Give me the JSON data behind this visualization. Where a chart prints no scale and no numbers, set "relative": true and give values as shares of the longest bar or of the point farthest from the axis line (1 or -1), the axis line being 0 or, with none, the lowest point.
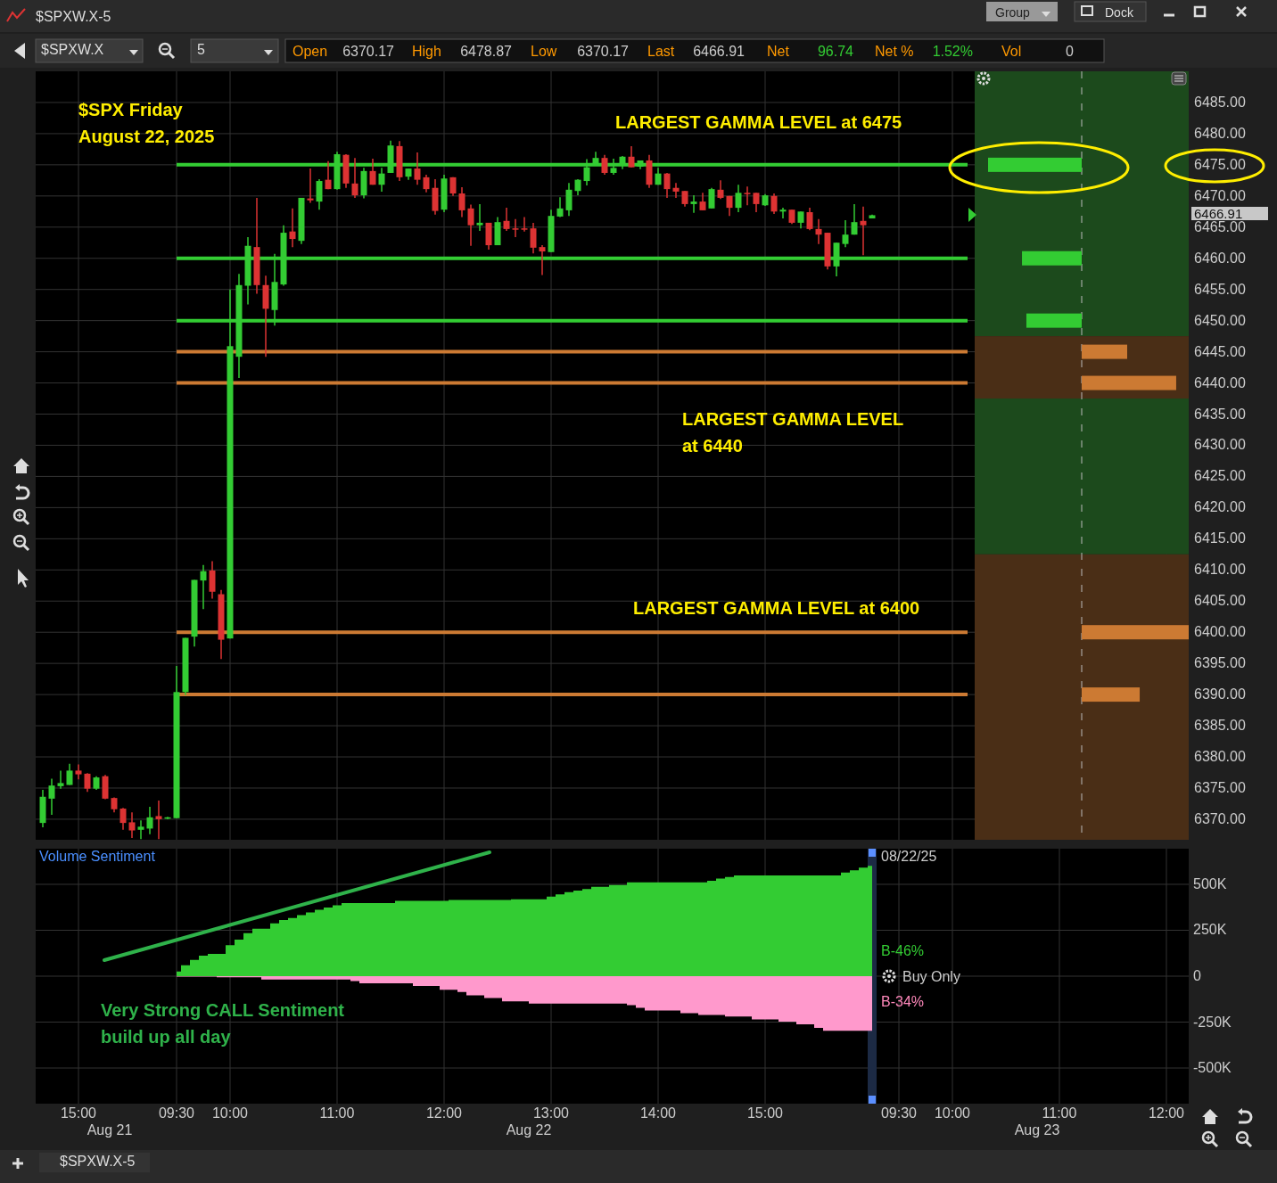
{
  "chart_data": [
    {
      "type": "candlestick",
      "title": "$SPX Friday",
      "subtitle": "August 22, 2025",
      "tick_labels": "y",
      "grid": true,
      "categories": [
        null,
        null,
        null,
        null,
        "15:00",
        null,
        null,
        null,
        null,
        null,
        null,
        null,
        null,
        null,
        null,
        "09:30",
        null,
        null,
        null,
        null,
        null,
        "10:00",
        null,
        null,
        null,
        null,
        null,
        null,
        null,
        null,
        null,
        null,
        null,
        "11:00",
        null,
        null,
        null,
        null,
        null,
        null,
        null,
        null,
        null,
        null,
        null,
        "12:00",
        null,
        null,
        null,
        null,
        null,
        null,
        null,
        null,
        null,
        null,
        null,
        "13:00",
        null,
        null,
        null,
        null,
        null,
        null,
        null,
        null,
        null,
        null,
        null,
        "14:00",
        null,
        null,
        null,
        null,
        null,
        null,
        null,
        null,
        null,
        null,
        null,
        "15:00",
        null,
        null,
        null,
        null,
        null,
        null,
        null,
        null,
        null,
        null,
        null,
        null,
        null,
        null,
        "09:30",
        null,
        null,
        null,
        null,
        null,
        "10:00",
        null,
        null,
        null,
        null,
        null,
        null,
        null,
        null,
        null,
        null,
        null,
        "11:00",
        null,
        null,
        null,
        null,
        null,
        null,
        null,
        null,
        null,
        null,
        null,
        "12:00",
        null,
        null
      ],
      "ohlc": [
        [
          6369.4,
          6374.7,
          6368.7,
          6373.6
        ],
        [
          6373.3,
          6376.5,
          6370.7,
          6375.4
        ],
        [
          6375.3,
          6377.8,
          6374.9,
          6375.8
        ],
        [
          6375.5,
          6378.9,
          6375.5,
          6377.8
        ],
        [
          6377.8,
          6378.8,
          6376.4,
          6377.2
        ],
        [
          6377.3,
          6377.4,
          6374.4,
          6374.9
        ],
        [
          6374.9,
          6376.9,
          6374.7,
          6376.7
        ],
        [
          6376.9,
          6377.1,
          6373.2,
          6373.3
        ],
        [
          6373.4,
          6373.5,
          6371.1,
          6371.6
        ],
        [
          6371.7,
          6371.8,
          6368.3,
          6369.4
        ],
        [
          6369.5,
          6371.1,
          6367.0,
          6368.2
        ],
        [
          6368.3,
          6369.8,
          6366.8,
          6368.8
        ],
        [
          6368.5,
          6372.0,
          6367.6,
          6370.3
        ],
        [
          6370.5,
          6373.0,
          6366.8,
          6370.0
        ],
        [
          6370.1,
          6370.4,
          6370.0,
          6370.3
        ],
        [
          6370.17,
          6394.6,
          6370.17,
          6390.4
        ],
        [
          6390.4,
          6399.1,
          6389.9,
          6399.1
        ],
        [
          6399.3,
          6408.4,
          6397.7,
          6408.4
        ],
        [
          6408.3,
          6410.8,
          6403.7,
          6409.8
        ],
        [
          6409.9,
          6411.4,
          6405.4,
          6406.5
        ],
        [
          6406.1,
          6406.8,
          6395.7,
          6398.8
        ],
        [
          6399.0,
          6455.0,
          6399.0,
          6445.9
        ],
        [
          6444.2,
          6457.5,
          6440.8,
          6455.7
        ],
        [
          6455.6,
          6463.4,
          6452.6,
          6462.0
        ],
        [
          6461.8,
          6469.7,
          6454.3,
          6455.7
        ],
        [
          6455.7,
          6457.2,
          6444.2,
          6451.9
        ],
        [
          6451.7,
          6460.7,
          6449.2,
          6456.2
        ],
        [
          6455.8,
          6465.3,
          6455.6,
          6464.1
        ],
        [
          6464.3,
          6468.0,
          6461.8,
          6463.1
        ],
        [
          6462.8,
          6469.7,
          6462.3,
          6469.7
        ],
        [
          6469.6,
          6474.4,
          6468.9,
          6469.3
        ],
        [
          6469.1,
          6472.7,
          6467.8,
          6472.4
        ],
        [
          6472.6,
          6475.6,
          6471.1,
          6471.1
        ],
        [
          6471.1,
          6477.1,
          6471.0,
          6476.7
        ],
        [
          6476.6,
          6476.7,
          6471.3,
          6472.0
        ],
        [
          6472.0,
          6476.1,
          6469.7,
          6470.1
        ],
        [
          6470.1,
          6474.5,
          6469.6,
          6474.0
        ],
        [
          6474.0,
          6476.0,
          6471.8,
          6471.8
        ],
        [
          6471.8,
          6474.5,
          6470.7,
          6473.6
        ],
        [
          6473.7,
          6478.87,
          6473.7,
          6478.1
        ],
        [
          6478.0,
          6478.8,
          6472.4,
          6473.0
        ],
        [
          6473.1,
          6474.4,
          6472.6,
          6474.4
        ],
        [
          6474.4,
          6477.0,
          6471.8,
          6472.6
        ],
        [
          6473.0,
          6473.4,
          6470.6,
          6471.1
        ],
        [
          6471.3,
          6472.7,
          6467.0,
          6467.6
        ],
        [
          6467.8,
          6473.4,
          6467.4,
          6472.8
        ],
        [
          6473.0,
          6473.0,
          6470.0,
          6470.4
        ],
        [
          6470.4,
          6471.4,
          6466.6,
          6467.7
        ],
        [
          6468.0,
          6468.6,
          6462.0,
          6465.3
        ],
        [
          6465.3,
          6468.7,
          6464.4,
          6465.7
        ],
        [
          6465.7,
          6465.7,
          6461.4,
          6462.1
        ],
        [
          6462.1,
          6466.6,
          6462.1,
          6465.8
        ],
        [
          6466.0,
          6468.1,
          6464.4,
          6464.7
        ],
        [
          6464.8,
          6466.3,
          6463.4,
          6464.7
        ],
        [
          6464.8,
          6466.6,
          6464.3,
          6464.7
        ],
        [
          6464.8,
          6465.7,
          6460.8,
          6461.7
        ],
        [
          6461.8,
          6462.1,
          6457.3,
          6461.1
        ],
        [
          6461.0,
          6467.8,
          6461.0,
          6466.8
        ],
        [
          6466.7,
          6469.8,
          6466.6,
          6468.0
        ],
        [
          6467.7,
          6472.1,
          6466.8,
          6471.0
        ],
        [
          6470.8,
          6472.7,
          6470.1,
          6472.6
        ],
        [
          6472.4,
          6475.9,
          6471.7,
          6474.6
        ],
        [
          6475.0,
          6477.1,
          6475.0,
          6476.1
        ],
        [
          6476.1,
          6476.6,
          6473.4,
          6473.7
        ],
        [
          6473.7,
          6476.0,
          6473.4,
          6474.5
        ],
        [
          6475.0,
          6476.4,
          6474.3,
          6476.3
        ],
        [
          6476.3,
          6478.0,
          6474.6,
          6474.6
        ],
        [
          6474.7,
          6475.7,
          6474.3,
          6475.7
        ],
        [
          6475.7,
          6476.6,
          6471.3,
          6471.8
        ],
        [
          6471.8,
          6474.5,
          6471.8,
          6473.6
        ],
        [
          6473.6,
          6473.7,
          6469.7,
          6471.1
        ],
        [
          6471.3,
          6472.1,
          6469.7,
          6470.7
        ],
        [
          6470.8,
          6470.8,
          6468.3,
          6468.7
        ],
        [
          6468.7,
          6470.1,
          6467.3,
          6469.1
        ],
        [
          6469.1,
          6470.5,
          6467.7,
          6467.7
        ],
        [
          6468.0,
          6471.3,
          6468.0,
          6471.1
        ],
        [
          6471.0,
          6472.5,
          6469.5,
          6469.7
        ],
        [
          6470.0,
          6470.0,
          6466.8,
          6468.1
        ],
        [
          6468.1,
          6471.8,
          6467.4,
          6470.5
        ],
        [
          6470.5,
          6471.5,
          6468.5,
          6470.4
        ],
        [
          6470.5,
          6470.5,
          6467.4,
          6468.7
        ],
        [
          6468.5,
          6470.3,
          6468.4,
          6470.1
        ],
        [
          6470.0,
          6470.4,
          6467.1,
          6467.5
        ],
        [
          6467.5,
          6468.1,
          6466.4,
          6467.8
        ],
        [
          6467.8,
          6467.8,
          6465.5,
          6465.7
        ],
        [
          6465.7,
          6467.5,
          6464.8,
          6467.5
        ],
        [
          6467.4,
          6468.1,
          6464.5,
          6464.7
        ],
        [
          6464.7,
          6466.3,
          6462.3,
          6463.8
        ],
        [
          6464.1,
          6464.1,
          6458.2,
          6458.7
        ],
        [
          6458.7,
          6462.5,
          6457.1,
          6462.5
        ],
        [
          6462.3,
          6466.1,
          6461.8,
          6463.8
        ],
        [
          6463.8,
          6468.7,
          6463.8,
          6465.8
        ],
        [
          6466.0,
          6468.3,
          6460.5,
          6465.3
        ],
        [
          6466.4,
          6467.0,
          6466.4,
          6466.91
        ],
        null,
        null,
        null,
        null,
        null,
        null,
        null,
        null,
        null,
        null,
        null,
        null,
        null,
        null,
        null,
        null,
        null,
        null,
        null,
        null,
        null,
        null,
        null,
        null,
        null,
        null,
        null,
        null,
        null,
        null,
        null,
        null,
        null,
        null,
        null
      ],
      "ylim": [
        6366.7,
        6490
      ],
      "yticks": [
        {
          "value": 6370,
          "label": "6370.00"
        },
        {
          "value": 6375,
          "label": "6375.00"
        },
        {
          "value": 6380,
          "label": "6380.00"
        },
        {
          "value": 6385,
          "label": "6385.00"
        },
        {
          "value": 6390,
          "label": "6390.00"
        },
        {
          "value": 6395,
          "label": "6395.00"
        },
        {
          "value": 6400,
          "label": "6400.00"
        },
        {
          "value": 6405,
          "label": "6405.00"
        },
        {
          "value": 6410,
          "label": "6410.00"
        },
        {
          "value": 6415,
          "label": "6415.00"
        },
        {
          "value": 6420,
          "label": "6420.00"
        },
        {
          "value": 6425,
          "label": "6425.00"
        },
        {
          "value": 6430,
          "label": "6430.00"
        },
        {
          "value": 6435,
          "label": "6435.00"
        },
        {
          "value": 6440,
          "label": "6440.00"
        },
        {
          "value": 6445,
          "label": "6445.00"
        },
        {
          "value": 6450,
          "label": "6450.00"
        },
        {
          "value": 6455,
          "label": "6455.00"
        },
        {
          "value": 6460,
          "label": "6460.00"
        },
        {
          "value": 6465,
          "label": "6465.00"
        },
        {
          "value": 6470,
          "label": "6470.00"
        },
        {
          "value": 6475,
          "label": "6475.00"
        },
        {
          "value": 6480,
          "label": "6480.00"
        },
        {
          "value": 6485,
          "label": "6485.00"
        }
      ],
      "ref_lines": [
        {
          "axis": "y",
          "value": 6475,
          "color": "#33cc33"
        },
        {
          "axis": "y",
          "value": 6460,
          "color": "#33cc33"
        },
        {
          "axis": "y",
          "value": 6450,
          "color": "#33cc33"
        },
        {
          "axis": "y",
          "value": 6445,
          "color": "#cc7a33"
        },
        {
          "axis": "y",
          "value": 6440,
          "color": "#cc7a33"
        },
        {
          "axis": "y",
          "value": 6400,
          "color": "#cc7a33"
        },
        {
          "axis": "y",
          "value": 6390,
          "color": "#cc7a33"
        }
      ],
      "annotations": [
        "LARGEST GAMMA LEVEL at 6475",
        "LARGEST GAMMA LEVEL at 6440",
        "LARGEST GAMMA LEVEL at 6400",
        "6466.91",
        "$SPXW.X-5",
        "$SPXW.X",
        "5",
        "Open",
        "6370.17",
        "High",
        "6478.87",
        "Low",
        "6370.17",
        "Last",
        "6466.91",
        "Net",
        "96.74",
        "Net %",
        "1.52%",
        "Vol",
        "0",
        "Group",
        "Dock",
        "$SPXW.X-5"
      ]
    },
    {
      "type": "area",
      "title": "Volume Sentiment",
      "grid": true,
      "categories": [
        null,
        null,
        null,
        null,
        "15:00",
        null,
        null,
        null,
        null,
        null,
        null,
        null,
        null,
        null,
        null,
        "09:30",
        null,
        null,
        null,
        null,
        null,
        "10:00",
        null,
        null,
        null,
        null,
        null,
        null,
        null,
        null,
        null,
        null,
        null,
        "11:00",
        null,
        null,
        null,
        null,
        null,
        null,
        null,
        null,
        null,
        null,
        null,
        "12:00",
        null,
        null,
        null,
        null,
        null,
        null,
        null,
        null,
        null,
        null,
        null,
        "13:00",
        null,
        null,
        null,
        null,
        null,
        null,
        null,
        null,
        null,
        null,
        null,
        "14:00",
        null,
        null,
        null,
        null,
        null,
        null,
        null,
        null,
        null,
        null,
        null,
        "15:00",
        null,
        null,
        null,
        null,
        null,
        null,
        null,
        null,
        null,
        null,
        null,
        null,
        null,
        null,
        "09:30",
        null,
        null,
        null,
        null,
        null,
        "10:00",
        null,
        null,
        null,
        null,
        null,
        null,
        null,
        null,
        null,
        null,
        null,
        "11:00",
        null,
        null,
        null,
        null,
        null,
        null,
        null,
        null,
        null,
        null,
        null,
        "12:00",
        null,
        null
      ],
      "series": [
        {
          "color": "#33cc33",
          "values": [
            null,
            null,
            null,
            null,
            null,
            null,
            null,
            null,
            null,
            null,
            null,
            null,
            null,
            null,
            null,
            26000,
            59000,
            88000,
            112000,
            121000,
            121000,
            169000,
            199000,
            234000,
            258000,
            258000,
            288000,
            306000,
            317000,
            332000,
            347000,
            362000,
            374000,
            386000,
            398000,
            398000,
            398000,
            398000,
            398000,
            398000,
            410000,
            410000,
            410000,
            410000,
            410000,
            410000,
            415000,
            415000,
            415000,
            415000,
            415000,
            415000,
            415000,
            418000,
            418000,
            418000,
            418000,
            433000,
            445000,
            457000,
            466000,
            475000,
            487000,
            487000,
            496000,
            496000,
            511000,
            511000,
            511000,
            511000,
            511000,
            511000,
            511000,
            511000,
            511000,
            519000,
            531000,
            540000,
            549000,
            549000,
            549000,
            549000,
            549000,
            549000,
            549000,
            549000,
            549000,
            549000,
            549000,
            549000,
            564000,
            576000,
            591000,
            600000,
            null,
            null,
            null,
            null,
            null,
            null,
            null,
            null,
            null,
            null,
            null,
            null,
            null,
            null,
            null,
            null,
            null,
            null,
            null,
            null,
            null,
            null,
            null,
            null,
            null,
            null,
            null,
            null,
            null,
            null,
            null,
            null,
            null,
            null,
            null
          ]
        },
        {
          "color": "#ff99cc",
          "values": [
            null,
            null,
            null,
            null,
            null,
            null,
            null,
            null,
            null,
            null,
            null,
            null,
            null,
            null,
            null,
            -3000,
            -3000,
            -3000,
            -3000,
            -3000,
            -6000,
            -6000,
            -6000,
            -6000,
            -6000,
            -18000,
            -18000,
            -18000,
            -18000,
            -18000,
            -18000,
            -18000,
            -18000,
            -18000,
            -18000,
            -27000,
            -39000,
            -39000,
            -39000,
            -39000,
            -39000,
            -39000,
            -53000,
            -53000,
            -53000,
            -74000,
            -74000,
            -86000,
            -104000,
            -104000,
            -119000,
            -119000,
            -137000,
            -137000,
            -137000,
            -149000,
            -149000,
            -149000,
            -149000,
            -149000,
            -149000,
            -149000,
            -149000,
            -149000,
            -149000,
            -149000,
            -158000,
            -172000,
            -187000,
            -187000,
            -187000,
            -187000,
            -202000,
            -202000,
            -211000,
            -211000,
            -211000,
            -220000,
            -220000,
            -220000,
            -235000,
            -235000,
            -235000,
            -247000,
            -247000,
            -262000,
            -262000,
            -282000,
            -297000,
            -297000,
            -297000,
            -297000,
            -297000,
            -297000,
            null,
            null,
            null,
            null,
            null,
            null,
            null,
            null,
            null,
            null,
            null,
            null,
            null,
            null,
            null,
            null,
            null,
            null,
            null,
            null,
            null,
            null,
            null,
            null,
            null,
            null,
            null,
            null,
            null,
            null,
            null,
            null,
            null,
            null,
            null
          ]
        }
      ],
      "ylim": [
        -694000,
        694000
      ],
      "yticks": [
        {
          "value": -500000,
          "label": "-500K"
        },
        {
          "value": -250000,
          "label": "-250K"
        },
        0,
        {
          "value": 250000,
          "label": "250K"
        },
        {
          "value": 500000,
          "label": "500K"
        }
      ],
      "annotations": [
        "08/22/25",
        "B-46%",
        "Buy Only",
        "B-34%",
        "Very Strong CALL Sentiment build up all day",
        "Aug 21",
        "Aug 22",
        "Aug 23"
      ]
    },
    {
      "type": "bar",
      "orientation": "horizontal",
      "relative": true,
      "x": [
        6475,
        6460,
        6450,
        6445,
        6440,
        6400,
        6390
      ],
      "ylim": [
        6366.7,
        6490
      ],
      "values": [
        -0.875,
        -0.558,
        -0.517,
        0.425,
        0.883,
        1,
        0.542
      ],
      "ref_lines": [
        {
          "axis": "x",
          "value": 0,
          "color": "#bbbbbb",
          "line_style": "dashed"
        }
      ],
      "colors": [
        "#33cc33",
        "#33cc33",
        "#33cc33",
        "#cc7a33",
        "#cc7a33",
        "#cc7a33",
        "#cc7a33"
      ],
      "bands": [
        {
          "axis": "y",
          "from": 6447.5,
          "to": 6490,
          "color": "#1c4a1c"
        },
        {
          "axis": "y",
          "from": 6437.5,
          "to": 6447.5,
          "color": "#4a2e16"
        },
        {
          "axis": "y",
          "from": 6412.5,
          "to": 6437.5,
          "color": "#1c4a1c"
        },
        {
          "axis": "y",
          "from": 6366.7,
          "to": 6412.5,
          "color": "#4a2e16"
        }
      ]
    }
  ]
}
